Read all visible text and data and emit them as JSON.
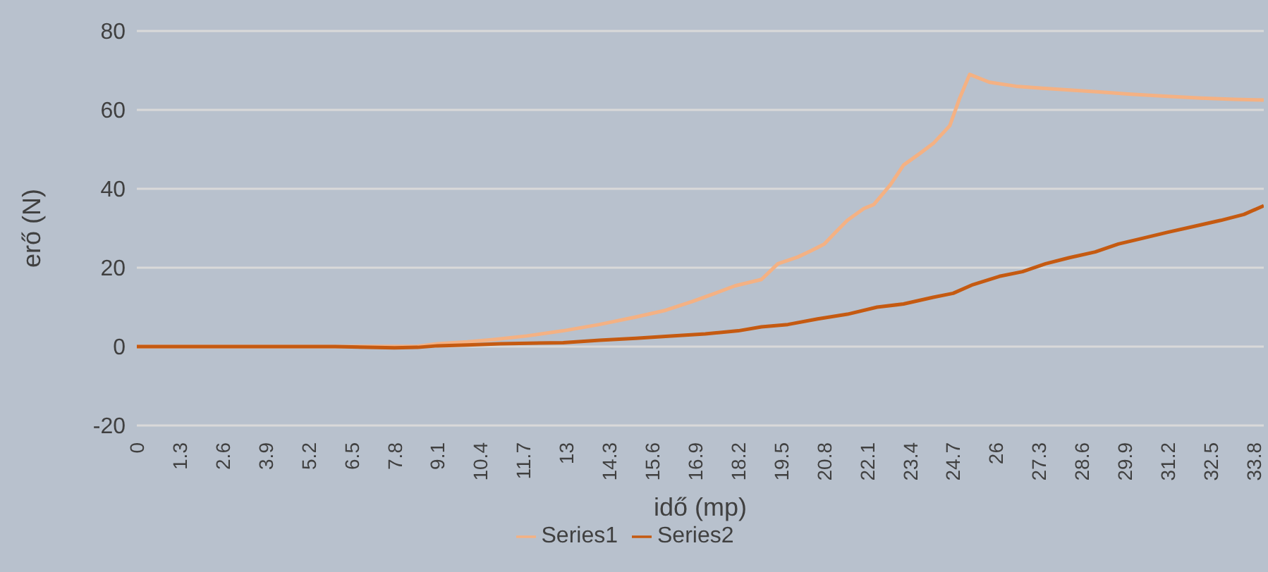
{
  "chart_data": {
    "type": "line",
    "xlabel": "idő (mp)",
    "ylabel": "erő (N)",
    "xlim": [
      0,
      34.1
    ],
    "xticks": [
      0,
      1.3,
      2.6,
      3.9,
      5.2,
      6.5,
      7.8,
      9.1,
      10.4,
      11.7,
      13,
      14.3,
      15.6,
      16.9,
      18.2,
      19.5,
      20.8,
      22.1,
      23.4,
      24.7,
      26,
      27.3,
      28.6,
      29.9,
      31.2,
      32.5,
      33.8
    ],
    "ylim": [
      -20,
      80
    ],
    "yticks": [
      -20,
      0,
      20,
      40,
      60,
      80
    ],
    "grid": "y",
    "legend": "bottom",
    "marker": "none",
    "line_style": "solid",
    "series": [
      {
        "name": "Series1",
        "color": "#f4b183",
        "x": [
          0,
          3,
          6,
          8.5,
          9.1,
          10,
          10.8,
          11.8,
          12.9,
          14,
          15.1,
          16,
          16.8,
          17.5,
          18.1,
          18.9,
          19.4,
          20,
          20.4,
          20.8,
          21.1,
          21.5,
          22,
          22.3,
          22.8,
          23.2,
          23.7,
          24.1,
          24.6,
          24.9,
          25.2,
          25.8,
          26.6,
          27.4,
          28.3,
          29.2,
          30,
          31.1,
          32.2,
          33.2,
          34.1
        ],
        "values": [
          0,
          0,
          0,
          0.1,
          0.7,
          1.2,
          1.8,
          2.7,
          4,
          5.6,
          7.5,
          9.2,
          11.4,
          13.5,
          15.4,
          17,
          21,
          22.7,
          24.3,
          26,
          28.6,
          32,
          35,
          36,
          41,
          46,
          49,
          51.5,
          56,
          63,
          69,
          67,
          66,
          65.5,
          65,
          64.5,
          64,
          63.5,
          63,
          62.7,
          62.5
        ]
      },
      {
        "name": "Series2",
        "color": "#c55a11",
        "x": [
          0,
          3,
          6,
          7.8,
          8.5,
          9.1,
          10,
          11,
          12.9,
          14,
          15.1,
          16,
          17.2,
          18.2,
          18.9,
          19.7,
          20.6,
          21.5,
          22.4,
          23.2,
          24.1,
          24.7,
          25.3,
          26.1,
          26.8,
          27.5,
          28.2,
          29,
          29.7,
          30.4,
          31.2,
          32,
          32.8,
          33.5,
          34.1
        ],
        "values": [
          0,
          0,
          0,
          -0.3,
          -0.2,
          0.2,
          0.4,
          0.7,
          1,
          1.6,
          2.1,
          2.6,
          3.2,
          4,
          5,
          5.6,
          7,
          8.2,
          10,
          10.8,
          12.5,
          13.5,
          15.7,
          17.8,
          19,
          21,
          22.5,
          24,
          26,
          27.4,
          29,
          30.5,
          32,
          33.5,
          35.7
        ]
      }
    ]
  }
}
